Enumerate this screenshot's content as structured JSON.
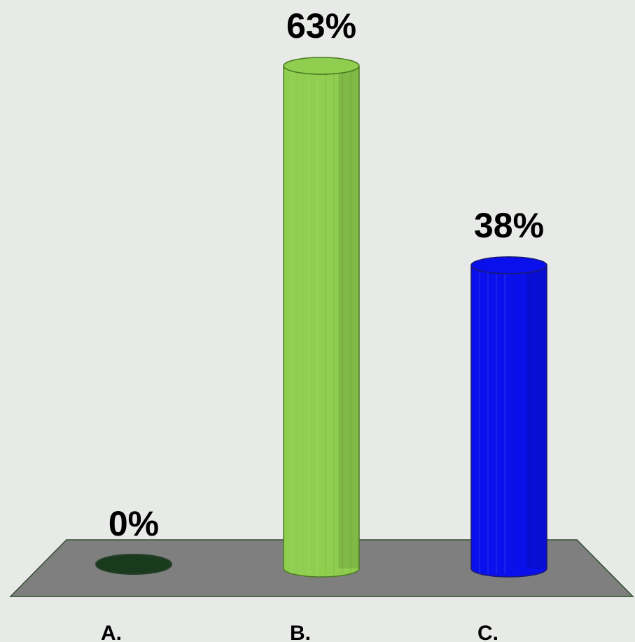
{
  "chart_data": {
    "type": "bar",
    "categories": [
      "A.",
      "B.",
      "C."
    ],
    "values": [
      0,
      63,
      38
    ],
    "data_labels": [
      "0%",
      "63%",
      "38%"
    ],
    "ylim": [
      0,
      63
    ],
    "grid": false,
    "legend": "none",
    "colors": {
      "background": "#e8eae7",
      "floor": "#7f7f7f",
      "floor_edge": "#2f4f2f",
      "bars": [
        "#1a3a1e",
        "#8fce4e",
        "#0a10ec"
      ],
      "bar_edges": [
        "#24402a",
        "#4c7a24",
        "#1a1a70"
      ]
    }
  }
}
